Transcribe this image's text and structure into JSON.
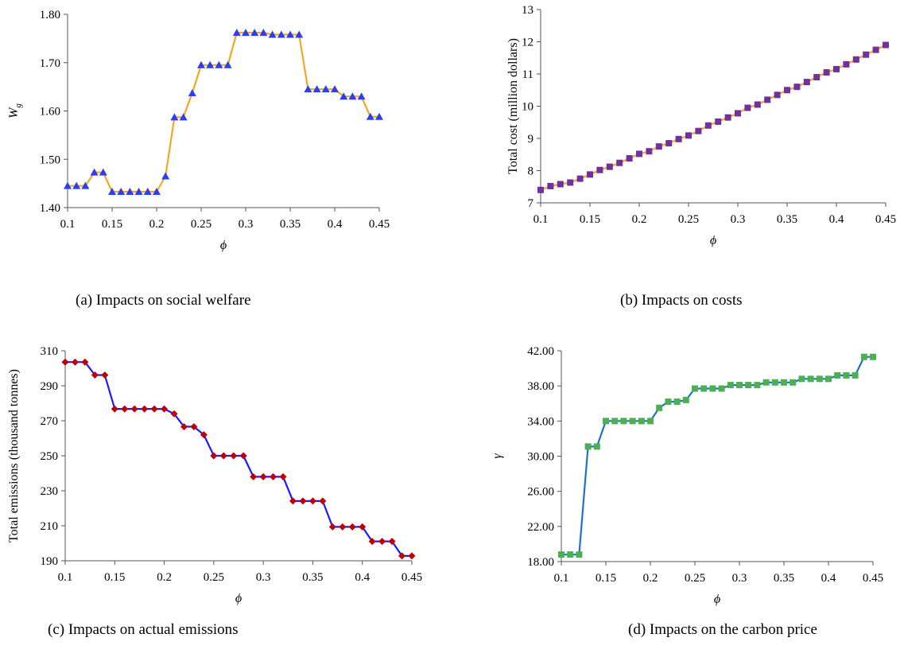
{
  "chart_data": [
    {
      "type": "line",
      "caption": "(a) Impacts on social welfare",
      "xlabel": "ϕ",
      "ylabel": "W",
      "ylabel_sub": "g",
      "xlim": [
        0.1,
        0.45
      ],
      "ylim": [
        1.4,
        1.8
      ],
      "xticks": [
        "0.1",
        "0.15",
        "0.2",
        "0.25",
        "0.3",
        "0.35",
        "0.4",
        "0.45"
      ],
      "yticks": [
        "1.40",
        "1.50",
        "1.60",
        "1.70",
        "1.80"
      ],
      "line_color": "#f5a623",
      "marker": "triangle",
      "marker_color": "#2b3ff0",
      "x": [
        0.1,
        0.11,
        0.12,
        0.13,
        0.14,
        0.15,
        0.16,
        0.17,
        0.18,
        0.19,
        0.2,
        0.21,
        0.22,
        0.23,
        0.24,
        0.25,
        0.26,
        0.27,
        0.28,
        0.29,
        0.3,
        0.31,
        0.32,
        0.33,
        0.34,
        0.35,
        0.36,
        0.37,
        0.38,
        0.39,
        0.4,
        0.41,
        0.42,
        0.43,
        0.44,
        0.45
      ],
      "y": [
        1.445,
        1.445,
        1.445,
        1.473,
        1.473,
        1.433,
        1.433,
        1.433,
        1.433,
        1.433,
        1.433,
        1.465,
        1.587,
        1.587,
        1.637,
        1.695,
        1.695,
        1.695,
        1.695,
        1.762,
        1.762,
        1.762,
        1.762,
        1.758,
        1.758,
        1.758,
        1.758,
        1.645,
        1.645,
        1.645,
        1.645,
        1.63,
        1.63,
        1.63,
        1.588,
        1.588
      ]
    },
    {
      "type": "line",
      "caption": "(b) Impacts on costs",
      "xlabel": "ϕ",
      "ylabel": "Total cost  (million dollars)",
      "xlim": [
        0.1,
        0.45
      ],
      "ylim": [
        7,
        13
      ],
      "xticks": [
        "0.1",
        "0.15",
        "0.2",
        "0.25",
        "0.3",
        "0.35",
        "0.4",
        "0.45"
      ],
      "yticks": [
        "7",
        "8",
        "9",
        "10",
        "11",
        "12",
        "13"
      ],
      "line_color": "#f5a623",
      "marker": "square",
      "marker_color": "#7030a0",
      "x": [
        0.1,
        0.11,
        0.12,
        0.13,
        0.14,
        0.15,
        0.16,
        0.17,
        0.18,
        0.19,
        0.2,
        0.21,
        0.22,
        0.23,
        0.24,
        0.25,
        0.26,
        0.27,
        0.28,
        0.29,
        0.3,
        0.31,
        0.32,
        0.33,
        0.34,
        0.35,
        0.36,
        0.37,
        0.38,
        0.39,
        0.4,
        0.41,
        0.42,
        0.43,
        0.44,
        0.45
      ],
      "y": [
        7.4,
        7.52,
        7.58,
        7.63,
        7.75,
        7.88,
        8.02,
        8.12,
        8.24,
        8.38,
        8.52,
        8.6,
        8.75,
        8.85,
        8.98,
        9.09,
        9.23,
        9.4,
        9.52,
        9.65,
        9.78,
        9.95,
        10.05,
        10.2,
        10.35,
        10.5,
        10.6,
        10.75,
        10.9,
        11.05,
        11.15,
        11.3,
        11.45,
        11.6,
        11.75,
        11.9
      ]
    },
    {
      "type": "line",
      "caption": "(c) Impacts on actual emissions",
      "xlabel": "ϕ",
      "ylabel": "Total emissions (thousand tonnes)",
      "xlim": [
        0.1,
        0.45
      ],
      "ylim": [
        190,
        320
      ],
      "xticks": [
        "0.1",
        "0.15",
        "0.2",
        "0.25",
        "0.3",
        "0.35",
        "0.4",
        "0.45"
      ],
      "yticks": [
        "190",
        "210",
        "230",
        "250",
        "270",
        "290",
        "310"
      ],
      "line_color": "#1a1aff",
      "marker": "diamond",
      "marker_color": "#c00000",
      "x": [
        0.1,
        0.11,
        0.12,
        0.13,
        0.14,
        0.15,
        0.16,
        0.17,
        0.18,
        0.19,
        0.2,
        0.21,
        0.22,
        0.23,
        0.24,
        0.25,
        0.26,
        0.27,
        0.28,
        0.29,
        0.3,
        0.31,
        0.32,
        0.33,
        0.34,
        0.35,
        0.36,
        0.37,
        0.38,
        0.39,
        0.4,
        0.41,
        0.42,
        0.43,
        0.44,
        0.45
      ],
      "y": [
        313,
        313,
        313,
        305,
        305,
        284,
        284,
        284,
        284,
        284,
        284,
        281,
        273,
        273,
        268,
        255,
        255,
        255,
        255,
        242,
        242,
        242,
        242,
        227,
        227,
        227,
        227,
        211,
        211,
        211,
        211,
        202,
        202,
        202,
        193,
        193
      ]
    },
    {
      "type": "line",
      "caption": "(d) Impacts on the carbon price",
      "xlabel": "ϕ",
      "ylabel": "γ",
      "xlim": [
        0.1,
        0.45
      ],
      "ylim": [
        18,
        42
      ],
      "xticks": [
        "0.1",
        "0.15",
        "0.2",
        "0.25",
        "0.3",
        "0.35",
        "0.4",
        "0.45"
      ],
      "yticks": [
        "18.00",
        "22.00",
        "26.00",
        "30.00",
        "34.00",
        "38.00",
        "42.00"
      ],
      "line_color": "#1f6fd1",
      "marker": "square",
      "marker_color": "#4caf50",
      "x": [
        0.1,
        0.11,
        0.12,
        0.13,
        0.14,
        0.15,
        0.16,
        0.17,
        0.18,
        0.19,
        0.2,
        0.21,
        0.22,
        0.23,
        0.24,
        0.25,
        0.26,
        0.27,
        0.28,
        0.29,
        0.3,
        0.31,
        0.32,
        0.33,
        0.34,
        0.35,
        0.36,
        0.37,
        0.38,
        0.39,
        0.4,
        0.41,
        0.42,
        0.43,
        0.44,
        0.45
      ],
      "y": [
        18.8,
        18.8,
        18.8,
        31.1,
        31.1,
        34.0,
        34.0,
        34.0,
        34.0,
        34.0,
        34.0,
        35.5,
        36.2,
        36.2,
        36.4,
        37.7,
        37.7,
        37.7,
        37.7,
        38.1,
        38.1,
        38.1,
        38.1,
        38.4,
        38.4,
        38.4,
        38.4,
        38.8,
        38.8,
        38.8,
        38.8,
        39.2,
        39.2,
        39.2,
        41.3,
        41.3
      ]
    }
  ]
}
